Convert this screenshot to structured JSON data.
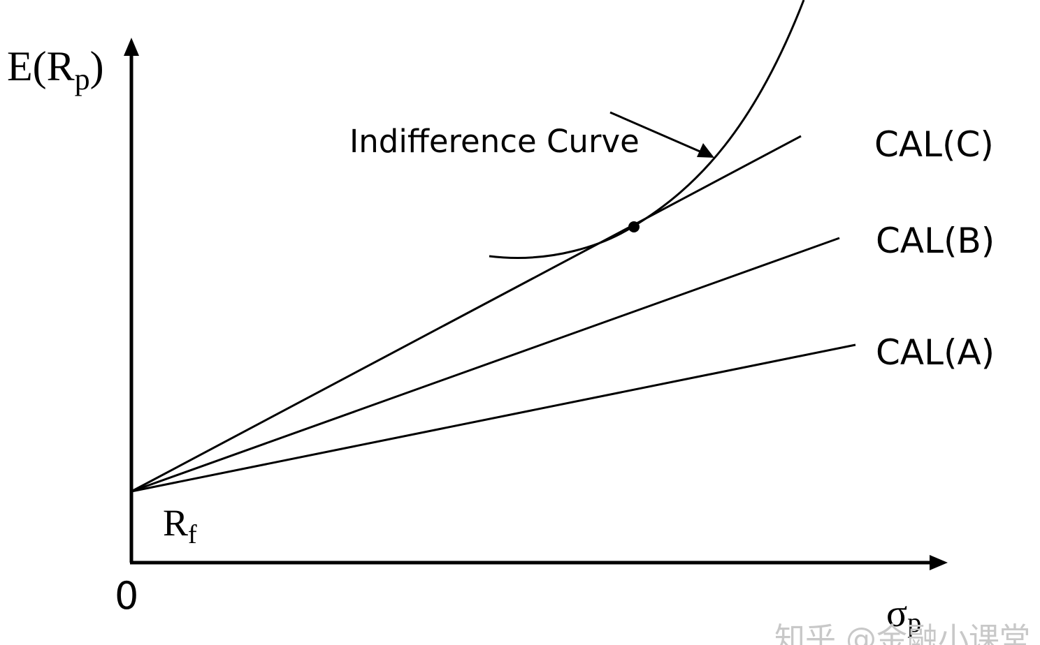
{
  "diagram": {
    "y_axis_label": {
      "main": "E(R",
      "sub": "p",
      "close": ")"
    },
    "x_axis_label": {
      "main": "σ",
      "sub": "p"
    },
    "origin_label": "0",
    "rf_label": {
      "main": "R",
      "sub": "f"
    },
    "curve_label": "Indifference Curve",
    "lines": [
      {
        "id": "cal-c",
        "label": "CAL(C)"
      },
      {
        "id": "cal-b",
        "label": "CAL(B)"
      },
      {
        "id": "cal-a",
        "label": "CAL(A)"
      }
    ],
    "watermark": "知乎 @金融小课堂",
    "colors": {
      "ink": "#000000",
      "watermark": "#c8c8c8"
    }
  }
}
